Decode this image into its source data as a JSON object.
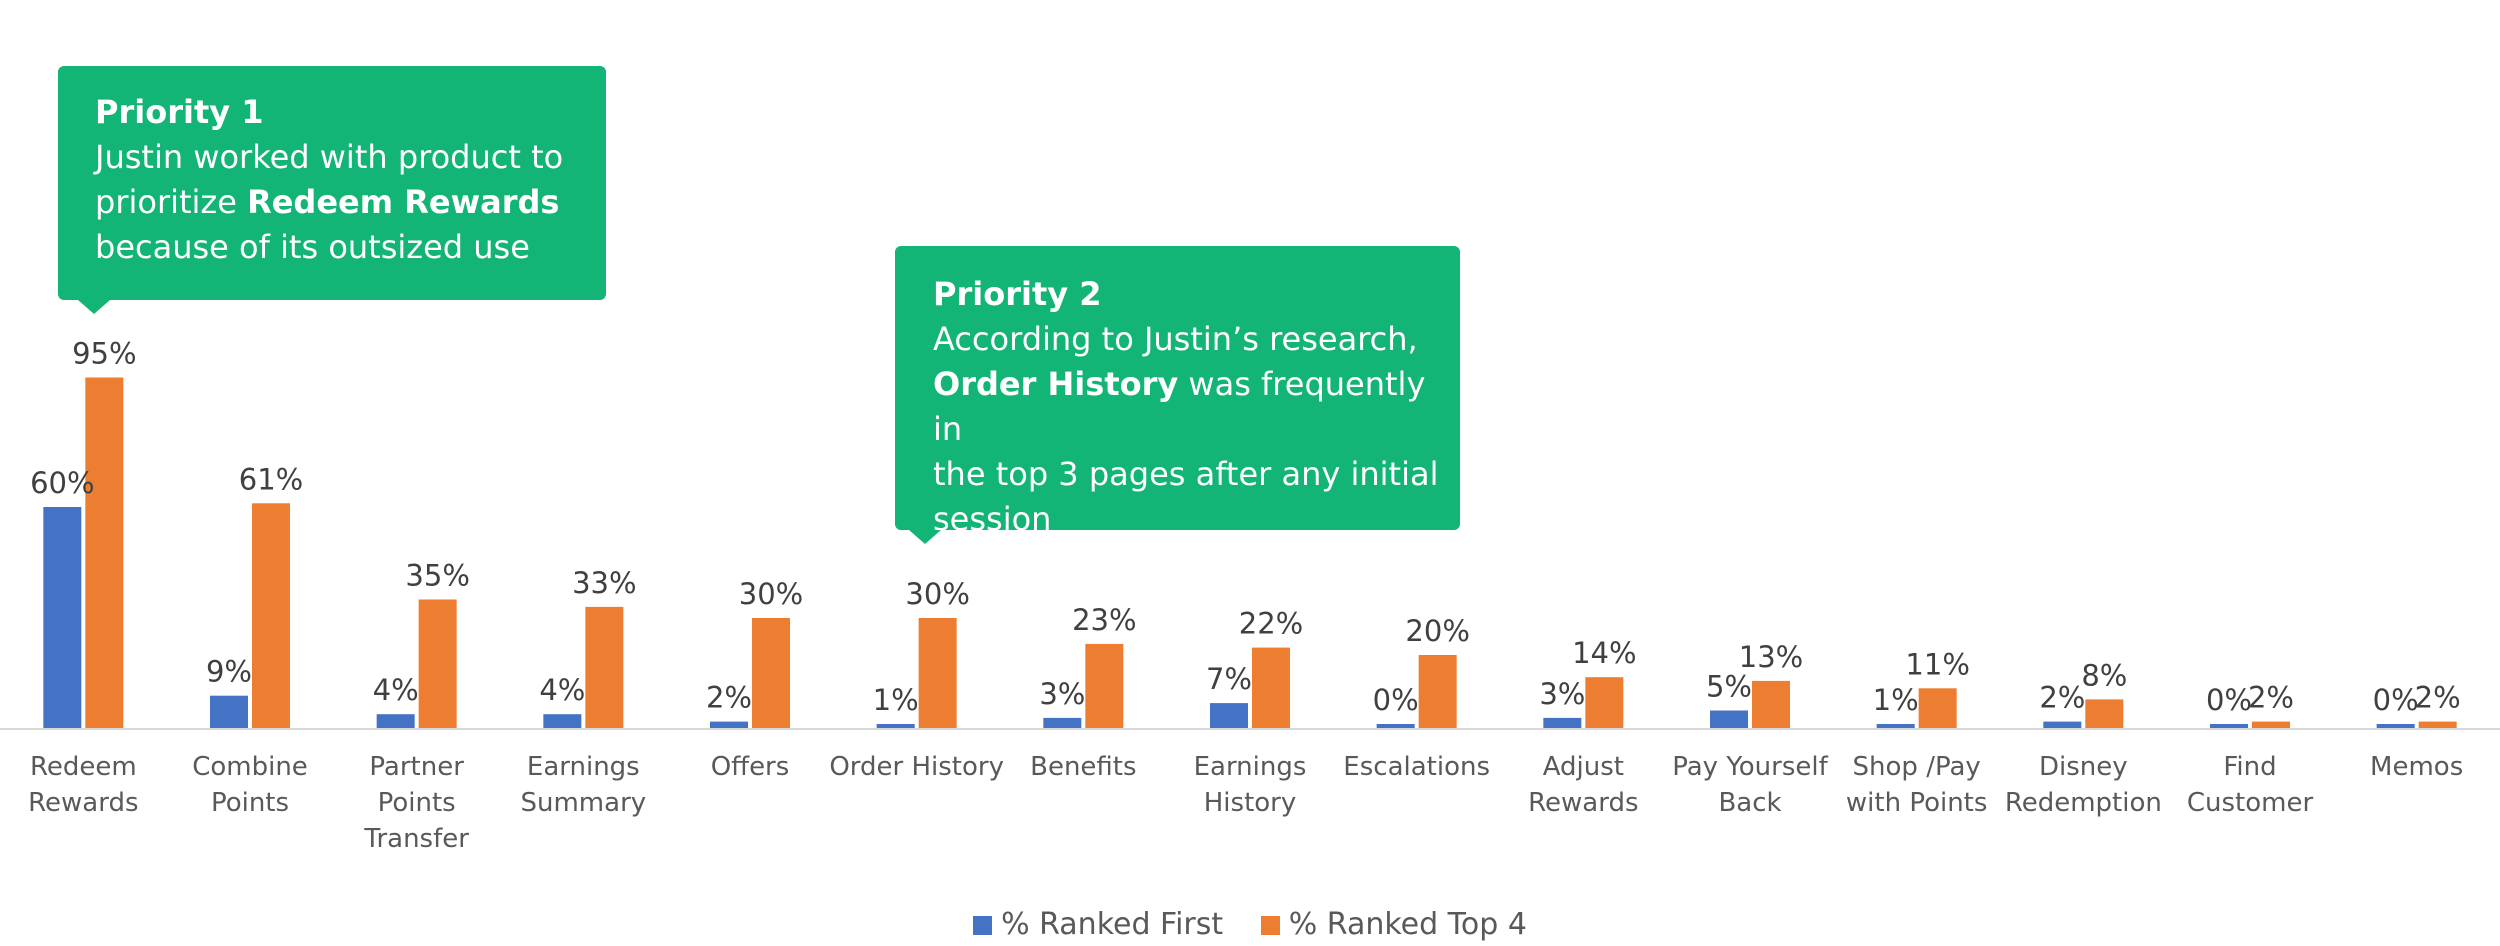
{
  "chart_data": {
    "type": "bar",
    "title": "",
    "xlabel": "",
    "ylabel": "",
    "ylim": [
      0,
      100
    ],
    "grid": false,
    "legend_position": "bottom",
    "categories": [
      [
        "Redeem",
        "Rewards"
      ],
      [
        "Combine",
        "Points"
      ],
      [
        "Partner",
        "Points",
        "Transfer"
      ],
      [
        "Earnings",
        "Summary"
      ],
      [
        "Offers"
      ],
      [
        "Order History"
      ],
      [
        "Benefits"
      ],
      [
        "Earnings",
        "History"
      ],
      [
        "Escalations"
      ],
      [
        "Adjust",
        "Rewards"
      ],
      [
        "Pay Yourself",
        "Back"
      ],
      [
        "Shop /Pay",
        "with Points"
      ],
      [
        "Disney",
        "Redemption"
      ],
      [
        "Find",
        "Customer"
      ],
      [
        "Memos"
      ]
    ],
    "series": [
      {
        "name": "% Ranked First",
        "color": "#4472c4",
        "values": [
          60,
          9,
          4,
          4,
          2,
          1,
          3,
          7,
          0,
          3,
          5,
          1,
          2,
          0,
          0
        ],
        "labels": [
          "60%",
          "9%",
          "4%",
          "4%",
          "2%",
          "1%",
          "3%",
          "7%",
          "0%",
          "3%",
          "5%",
          "1%",
          "2%",
          "0%",
          "0%"
        ]
      },
      {
        "name": "% Ranked Top 4",
        "color": "#ed7d31",
        "values": [
          95,
          61,
          35,
          33,
          30,
          30,
          23,
          22,
          20,
          14,
          13,
          11,
          8,
          2,
          2
        ],
        "labels": [
          "95%",
          "61%",
          "35%",
          "33%",
          "30%",
          "30%",
          "23%",
          "22%",
          "20%",
          "14%",
          "13%",
          "11%",
          "8%",
          "2%",
          "2%"
        ]
      }
    ]
  },
  "callouts": {
    "priority1": {
      "title": "Priority 1",
      "line1": "Justin worked with product to",
      "line2_pre": "prioritize ",
      "line2_bold": "Redeem Rewards",
      "line3": "because of its outsized use"
    },
    "priority2": {
      "title": "Priority 2",
      "line1": "According to Justin’s research,",
      "line2_bold": "Order History",
      "line2_post": " was frequently in",
      "line3": "the top 3 pages after any initial",
      "line4": "session"
    }
  }
}
